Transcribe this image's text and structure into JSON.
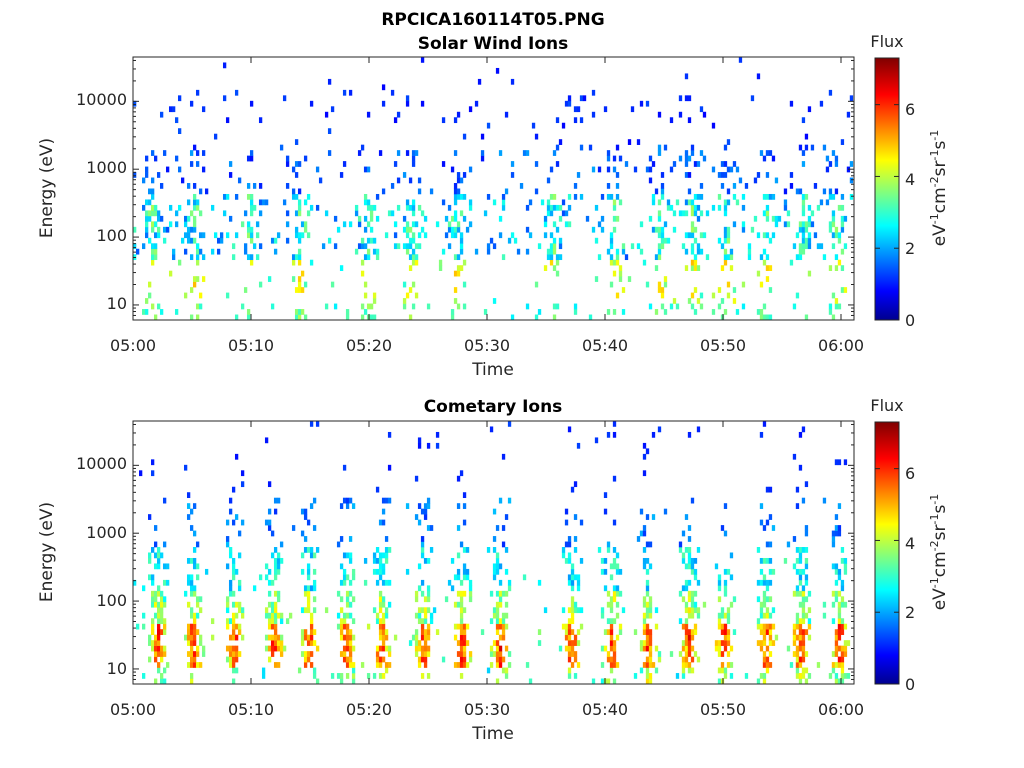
{
  "figure": {
    "title": "RPCICA160114T05.PNG"
  },
  "chart_data": [
    {
      "type": "heatmap",
      "title": "Solar Wind Ions",
      "xlabel": "Time",
      "ylabel": "Energy (eV)",
      "x_ticks": [
        "05:00",
        "05:10",
        "05:20",
        "05:30",
        "05:40",
        "05:50",
        "06:00"
      ],
      "x_range_minutes": [
        0,
        61
      ],
      "y_scale": "log",
      "y_ticks": [
        "10",
        "100",
        "1000",
        "10000"
      ],
      "y_range": [
        6,
        45000
      ],
      "grid": false,
      "colorbar": {
        "title": "Flux",
        "label": "eV-1cm-2sr-1s-1",
        "label_parts": [
          {
            "base": "eV",
            "sup": "-1"
          },
          {
            "base": "cm",
            "sup": "-2"
          },
          {
            "base": "sr",
            "sup": "-1"
          },
          {
            "base": "s",
            "sup": "-1"
          }
        ],
        "ticks": [
          "0",
          "2",
          "4",
          "6"
        ],
        "range": [
          0,
          7.3
        ],
        "colormap": "jet"
      },
      "bursts_minutes": [
        1.5,
        5.2,
        9.8,
        14.0,
        19.8,
        23.5,
        27.3,
        35.5,
        40.8,
        44.5,
        47.3,
        50.2,
        53.5,
        56.8,
        59.6
      ],
      "seed": 11
    },
    {
      "type": "heatmap",
      "title": "Cometary Ions",
      "xlabel": "Time",
      "ylabel": "Energy (eV)",
      "x_ticks": [
        "05:00",
        "05:10",
        "05:20",
        "05:30",
        "05:40",
        "05:50",
        "06:00"
      ],
      "x_range_minutes": [
        0,
        61
      ],
      "y_scale": "log",
      "y_ticks": [
        "10",
        "100",
        "1000",
        "10000"
      ],
      "y_range": [
        6,
        45000
      ],
      "grid": false,
      "colorbar": {
        "title": "Flux",
        "label": "eV-1cm-2sr-1s-1",
        "label_parts": [
          {
            "base": "eV",
            "sup": "-1"
          },
          {
            "base": "cm",
            "sup": "-2"
          },
          {
            "base": "sr",
            "sup": "-1"
          },
          {
            "base": "s",
            "sup": "-1"
          }
        ],
        "ticks": [
          "0",
          "2",
          "4",
          "6"
        ],
        "range": [
          0,
          7.3
        ],
        "colormap": "jet"
      },
      "bursts_minutes": [
        2.0,
        5.0,
        8.5,
        11.8,
        14.8,
        18.0,
        21.0,
        24.5,
        27.8,
        31.0,
        37.0,
        40.5,
        43.5,
        47.0,
        50.0,
        53.5,
        56.5,
        59.8
      ],
      "seed": 29
    }
  ]
}
